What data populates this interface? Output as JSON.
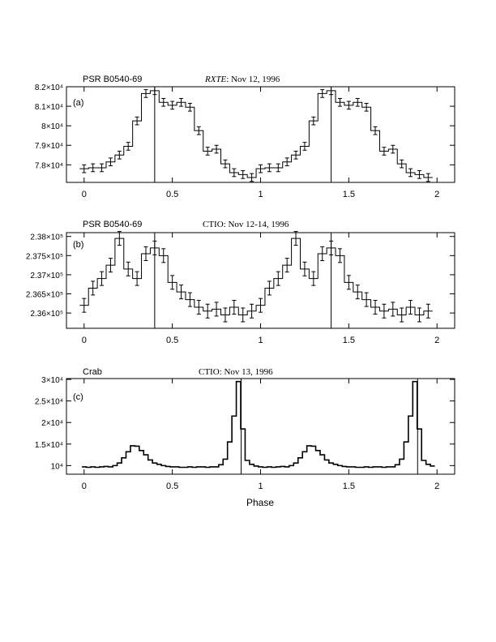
{
  "chart_data": [
    {
      "type": "line",
      "panel_label": "(a)",
      "source_label": "PSR B0540-69",
      "title_prefix": "RXTE",
      "title_suffix": ": Nov 12, 1996",
      "xlabel": "",
      "ylabel": "",
      "xlim": [
        -0.1,
        2.1
      ],
      "ylim": [
        77100,
        82000
      ],
      "xticks": [
        0,
        0.5,
        1,
        1.5,
        2
      ],
      "xtick_labels": [
        "0",
        "0.5",
        "1",
        "1.5",
        "2"
      ],
      "yticks": [
        78000,
        79000,
        80000,
        81000,
        82000
      ],
      "ytick_labels": [
        "7.8×10⁴",
        "7.9×10⁴",
        "8×10⁴",
        "8.1×10⁴",
        "8.2×10⁴"
      ],
      "vlines": [
        0.4,
        1.4
      ],
      "x": [
        0,
        0.05,
        0.1,
        0.15,
        0.2,
        0.25,
        0.3,
        0.35,
        0.4,
        0.45,
        0.5,
        0.55,
        0.6,
        0.65,
        0.7,
        0.75,
        0.8,
        0.85,
        0.9,
        0.95,
        1.0,
        1.05,
        1.1,
        1.15,
        1.2,
        1.25,
        1.3,
        1.35,
        1.4,
        1.45,
        1.5,
        1.55,
        1.6,
        1.65,
        1.7,
        1.75,
        1.8,
        1.85,
        1.9,
        1.95
      ],
      "y": [
        77800,
        77850,
        77850,
        78150,
        78500,
        78950,
        80250,
        81650,
        81800,
        81200,
        81050,
        81200,
        80950,
        79750,
        78700,
        78800,
        78050,
        77600,
        77500,
        77350,
        77800,
        77850,
        77850,
        78150,
        78500,
        78950,
        80250,
        81650,
        81800,
        81200,
        81050,
        81200,
        80950,
        79750,
        78700,
        78800,
        78050,
        77600,
        77500,
        77350
      ],
      "yerr": 200
    },
    {
      "type": "line",
      "panel_label": "(b)",
      "source_label": "PSR B0540-69",
      "title_prefix": "",
      "title_suffix": "CTIO: Nov 12-14, 1996",
      "xlabel": "",
      "ylabel": "",
      "xlim": [
        -0.1,
        2.1
      ],
      "ylim": [
        235600,
        238100
      ],
      "xticks": [
        0,
        0.5,
        1,
        1.5,
        2
      ],
      "xtick_labels": [
        "0",
        "0.5",
        "1",
        "1.5",
        "2"
      ],
      "yticks": [
        236000,
        236500,
        237000,
        237500,
        238000
      ],
      "ytick_labels": [
        "2.36×10⁵",
        "2.365×10⁵",
        "2.37×10⁵",
        "2.375×10⁵",
        "2.38×10⁵"
      ],
      "vlines": [
        0.4,
        1.4
      ],
      "x": [
        0,
        0.05,
        0.1,
        0.15,
        0.2,
        0.25,
        0.3,
        0.35,
        0.4,
        0.45,
        0.5,
        0.55,
        0.6,
        0.65,
        0.7,
        0.75,
        0.8,
        0.85,
        0.9,
        0.95,
        1.0,
        1.05,
        1.1,
        1.15,
        1.2,
        1.25,
        1.3,
        1.35,
        1.4,
        1.45,
        1.5,
        1.55,
        1.6,
        1.65,
        1.7,
        1.75,
        1.8,
        1.85,
        1.9,
        1.95
      ],
      "y": [
        236200,
        236650,
        236900,
        237250,
        237950,
        237150,
        236900,
        237550,
        237700,
        237500,
        236800,
        236550,
        236350,
        236150,
        236050,
        236100,
        235950,
        236150,
        235950,
        236050,
        236200,
        236650,
        236900,
        237250,
        237950,
        237150,
        236900,
        237550,
        237700,
        237500,
        236800,
        236550,
        236350,
        236150,
        236050,
        236100,
        235950,
        236150,
        235950,
        236050
      ],
      "yerr": 180
    },
    {
      "type": "line",
      "panel_label": "(c)",
      "source_label": "Crab",
      "title_prefix": "",
      "title_suffix": "CTIO: Nov 13, 1996",
      "xlabel": "Phase",
      "ylabel": "",
      "xlim": [
        -0.1,
        2.1
      ],
      "ylim": [
        8000,
        30200
      ],
      "xticks": [
        0,
        0.5,
        1,
        1.5,
        2
      ],
      "xtick_labels": [
        "0",
        "0.5",
        "1",
        "1.5",
        "2"
      ],
      "yticks": [
        10000,
        15000,
        20000,
        25000,
        30000
      ],
      "ytick_labels": [
        "10⁴",
        "1.5×10⁴",
        "2×10⁴",
        "2.5×10⁴",
        "3×10⁴"
      ],
      "vlines": [
        0.89,
        1.89
      ],
      "x": [
        0.0,
        0.025,
        0.05,
        0.075,
        0.1,
        0.125,
        0.15,
        0.175,
        0.2,
        0.225,
        0.25,
        0.275,
        0.3,
        0.325,
        0.35,
        0.375,
        0.4,
        0.425,
        0.45,
        0.475,
        0.5,
        0.525,
        0.55,
        0.575,
        0.6,
        0.625,
        0.65,
        0.675,
        0.7,
        0.725,
        0.75,
        0.775,
        0.8,
        0.825,
        0.85,
        0.875,
        0.9,
        0.925,
        0.95,
        0.975,
        1.0,
        1.025,
        1.05,
        1.075,
        1.1,
        1.125,
        1.15,
        1.175,
        1.2,
        1.225,
        1.25,
        1.275,
        1.3,
        1.325,
        1.35,
        1.375,
        1.4,
        1.425,
        1.45,
        1.475,
        1.5,
        1.525,
        1.55,
        1.575,
        1.6,
        1.625,
        1.65,
        1.675,
        1.7,
        1.725,
        1.75,
        1.775,
        1.8,
        1.825,
        1.85,
        1.875,
        1.9,
        1.925,
        1.95,
        1.975
      ],
      "y": [
        9700,
        9600,
        9700,
        9600,
        9700,
        9800,
        9700,
        10000,
        10600,
        11800,
        13200,
        14600,
        14500,
        13500,
        12500,
        11300,
        10600,
        10300,
        10000,
        9800,
        9700,
        9700,
        9600,
        9600,
        9700,
        9600,
        9700,
        9700,
        9600,
        9700,
        9700,
        10200,
        11500,
        15500,
        21500,
        29500,
        18500,
        11200,
        10300,
        9900,
        9700,
        9600,
        9700,
        9600,
        9700,
        9800,
        9700,
        10000,
        10600,
        11800,
        13200,
        14600,
        14500,
        13500,
        12500,
        11300,
        10600,
        10300,
        10000,
        9800,
        9700,
        9700,
        9600,
        9600,
        9700,
        9600,
        9700,
        9700,
        9600,
        9700,
        9700,
        10200,
        11500,
        15500,
        21500,
        29500,
        18500,
        11200,
        10300,
        9900
      ],
      "yerr": 0
    }
  ]
}
